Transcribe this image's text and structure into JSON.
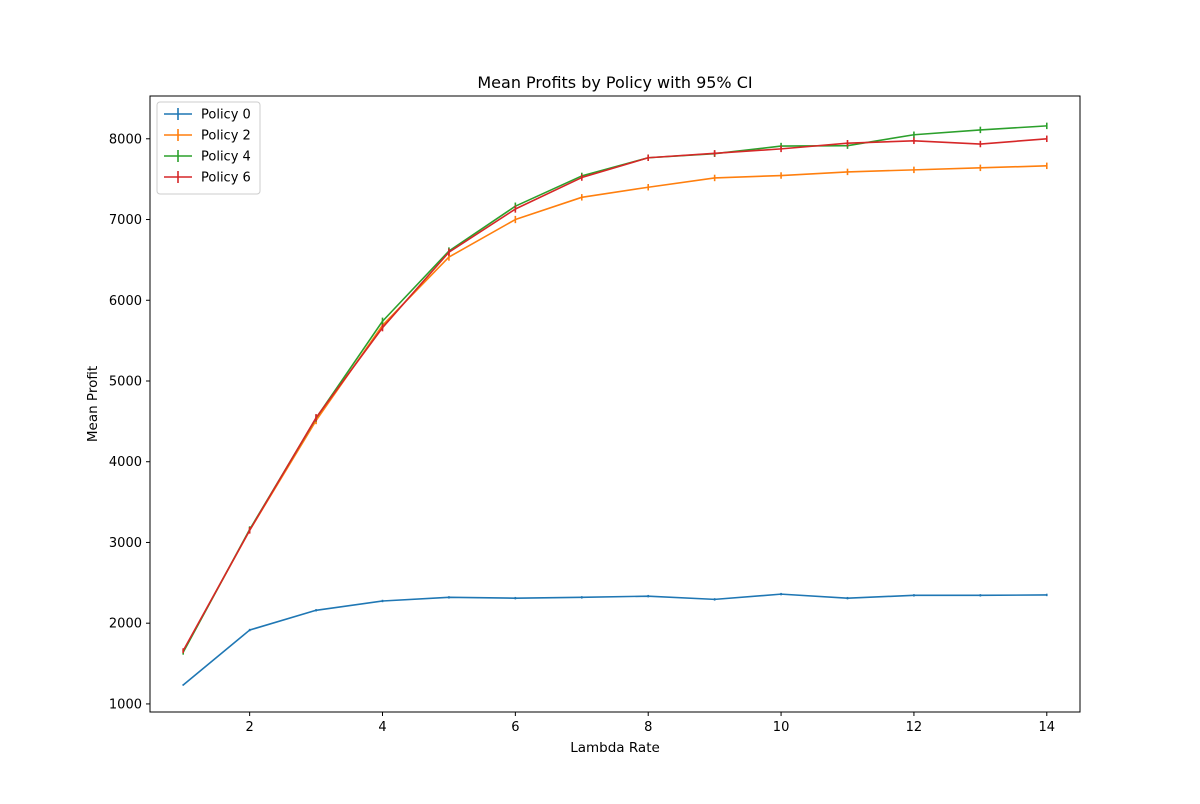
{
  "chart_data": {
    "type": "line",
    "title": "Mean Profits by Policy with 95% CI",
    "xlabel": "Lambda Rate",
    "ylabel": "Mean Profit",
    "xlim": [
      0.5,
      14.5
    ],
    "ylim": [
      900,
      8530
    ],
    "xticks": [
      2,
      4,
      6,
      8,
      10,
      12,
      14
    ],
    "yticks": [
      1000,
      2000,
      3000,
      4000,
      5000,
      6000,
      7000,
      8000
    ],
    "grid": false,
    "legend_position": "top-left",
    "x": [
      1,
      2,
      3,
      4,
      5,
      6,
      7,
      8,
      9,
      10,
      11,
      12,
      13,
      14
    ],
    "series": [
      {
        "name": "Policy 0",
        "color": "#1f77b4",
        "values": [
          1235,
          1915,
          2160,
          2275,
          2320,
          2310,
          2320,
          2335,
          2295,
          2360,
          2310,
          2345,
          2345,
          2350
        ],
        "ci": [
          10,
          15,
          15,
          15,
          15,
          15,
          15,
          15,
          15,
          15,
          15,
          15,
          15,
          15
        ]
      },
      {
        "name": "Policy 2",
        "color": "#ff7f0e",
        "values": [
          1650,
          3150,
          4510,
          5690,
          6535,
          7000,
          7275,
          7400,
          7515,
          7545,
          7590,
          7615,
          7640,
          7665
        ],
        "ci": [
          30,
          40,
          45,
          45,
          45,
          45,
          40,
          40,
          40,
          40,
          40,
          40,
          40,
          40
        ]
      },
      {
        "name": "Policy 4",
        "color": "#2ca02c",
        "values": [
          1640,
          3160,
          4540,
          5740,
          6610,
          7165,
          7540,
          7765,
          7815,
          7910,
          7915,
          8050,
          8110,
          8160
        ],
        "ci": [
          30,
          40,
          45,
          45,
          45,
          45,
          40,
          40,
          40,
          40,
          40,
          40,
          40,
          40
        ]
      },
      {
        "name": "Policy 6",
        "color": "#d62728",
        "values": [
          1660,
          3150,
          4545,
          5660,
          6595,
          7130,
          7520,
          7765,
          7820,
          7875,
          7945,
          7975,
          7935,
          8000
        ],
        "ci": [
          30,
          40,
          45,
          45,
          45,
          45,
          40,
          40,
          40,
          40,
          40,
          40,
          40,
          40
        ]
      }
    ]
  }
}
